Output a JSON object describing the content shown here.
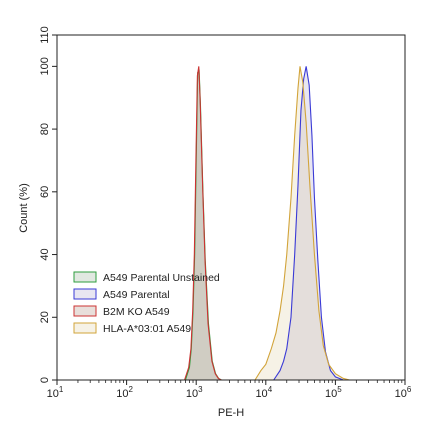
{
  "chart_data": {
    "type": "area",
    "xlabel": "PE-H",
    "ylabel": "Count (%)",
    "xscale": "log",
    "xlim": [
      10,
      1000000
    ],
    "ylim": [
      0,
      110
    ],
    "xticks": [
      {
        "value": 10,
        "base": "10",
        "exp": "1"
      },
      {
        "value": 100,
        "base": "10",
        "exp": "2"
      },
      {
        "value": 1000,
        "base": "10",
        "exp": "3"
      },
      {
        "value": 10000,
        "base": "10",
        "exp": "4"
      },
      {
        "value": 100000,
        "base": "10",
        "exp": "5"
      },
      {
        "value": 1000000,
        "base": "10",
        "exp": "6"
      }
    ],
    "yticks": [
      "0",
      "20",
      "40",
      "60",
      "80",
      "100",
      "110"
    ],
    "legend_position": "lower-left",
    "series": [
      {
        "name": "A549 Parental Unstained",
        "color": "#2e9e3e",
        "fill": "rgba(120,150,120,0.22)",
        "points": [
          [
            700,
            0
          ],
          [
            800,
            4
          ],
          [
            850,
            10
          ],
          [
            900,
            22
          ],
          [
            950,
            40
          ],
          [
            1000,
            70
          ],
          [
            1050,
            98
          ],
          [
            1100,
            99
          ],
          [
            1150,
            88
          ],
          [
            1250,
            60
          ],
          [
            1350,
            38
          ],
          [
            1500,
            18
          ],
          [
            1700,
            6
          ],
          [
            1900,
            2
          ],
          [
            2100,
            0.5
          ],
          [
            2300,
            0
          ]
        ]
      },
      {
        "name": "A549 Parental",
        "color": "#3a3ad6",
        "fill": "rgba(150,140,190,0.22)",
        "points": [
          [
            13000,
            0
          ],
          [
            16000,
            3
          ],
          [
            18000,
            6
          ],
          [
            20000,
            10
          ],
          [
            23000,
            20
          ],
          [
            26000,
            40
          ],
          [
            29000,
            62
          ],
          [
            32000,
            86
          ],
          [
            35000,
            96
          ],
          [
            38000,
            100
          ],
          [
            42000,
            94
          ],
          [
            46000,
            78
          ],
          [
            50000,
            58
          ],
          [
            56000,
            38
          ],
          [
            63000,
            20
          ],
          [
            72000,
            9
          ],
          [
            85000,
            3
          ],
          [
            100000,
            1
          ],
          [
            130000,
            0
          ]
        ]
      },
      {
        "name": "B2M KO A549",
        "color": "#cc3333",
        "fill": "rgba(150,110,90,0.22)",
        "points": [
          [
            680,
            0
          ],
          [
            780,
            4
          ],
          [
            840,
            10
          ],
          [
            890,
            22
          ],
          [
            940,
            40
          ],
          [
            990,
            70
          ],
          [
            1040,
            97
          ],
          [
            1090,
            100
          ],
          [
            1140,
            89
          ],
          [
            1240,
            61
          ],
          [
            1340,
            38
          ],
          [
            1480,
            18
          ],
          [
            1680,
            6
          ],
          [
            1880,
            2
          ],
          [
            2080,
            0.5
          ],
          [
            2300,
            0
          ]
        ]
      },
      {
        "name": "HLA-A*03:01 A549",
        "color": "#d2a43a",
        "fill": "rgba(215,195,140,0.22)",
        "points": [
          [
            7000,
            0
          ],
          [
            8500,
            3
          ],
          [
            10000,
            5
          ],
          [
            12000,
            10
          ],
          [
            14000,
            15
          ],
          [
            16000,
            22
          ],
          [
            18000,
            30
          ],
          [
            20000,
            40
          ],
          [
            23000,
            58
          ],
          [
            26000,
            78
          ],
          [
            29000,
            93
          ],
          [
            31000,
            100
          ],
          [
            34000,
            95
          ],
          [
            38000,
            82
          ],
          [
            43000,
            62
          ],
          [
            50000,
            40
          ],
          [
            58000,
            22
          ],
          [
            67000,
            11
          ],
          [
            80000,
            5
          ],
          [
            100000,
            2
          ],
          [
            130000,
            0.5
          ],
          [
            160000,
            0
          ]
        ]
      }
    ]
  }
}
